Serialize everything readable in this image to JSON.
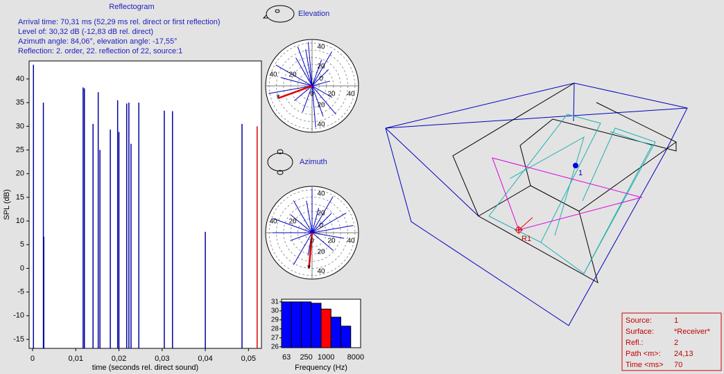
{
  "header": {
    "title": "Reflectogram",
    "info_lines": [
      "Arrival time: 70,31 ms (52,29 ms rel. direct or first reflection)",
      "Level of: 30,32 dB (-12,83 dB rel. direct)",
      "Azimuth angle: 84,06°, elevation angle: -17,55°",
      "Reflection: 2. order, 22. reflection of 22, source:1"
    ]
  },
  "chart_data": [
    {
      "type": "impulse",
      "x_label": "time (seconds rel. direct sound)",
      "y_label": "SPL (dB)",
      "x": [
        0.0002,
        0.0025,
        0.0026,
        0.0117,
        0.012,
        0.014,
        0.0152,
        0.0156,
        0.018,
        0.0197,
        0.02,
        0.0218,
        0.0223,
        0.0228,
        0.0246,
        0.0305,
        0.0324,
        0.04,
        0.0485,
        0.052
      ],
      "values": [
        43,
        35,
        6.7,
        38.2,
        38,
        30.5,
        37.2,
        25,
        29.3,
        35.5,
        28.8,
        34.8,
        35,
        26.3,
        35,
        33.3,
        33.2,
        7.7,
        30.5,
        30
      ],
      "colors": [
        "#0000a0",
        "#0000a0",
        "#0000a0",
        "#0000a0",
        "#0000a0",
        "#0000a0",
        "#0000a0",
        "#0000a0",
        "#0000a0",
        "#0000a0",
        "#0000a0",
        "#0000a0",
        "#0000a0",
        "#0000a0",
        "#0000a0",
        "#0000a0",
        "#0000a0",
        "#0000a0",
        "#0000a0",
        "#e00000"
      ],
      "xlim": [
        -0.0008,
        0.053
      ],
      "ylim": [
        -16.9,
        43.8
      ],
      "xticks": [
        0,
        {
          "value": 0.01,
          "label": "0,01"
        },
        {
          "value": 0.02,
          "label": "0,02"
        },
        {
          "value": 0.03,
          "label": "0,03"
        },
        {
          "value": 0.04,
          "label": "0,04"
        },
        {
          "value": 0.05,
          "label": "0,05"
        }
      ],
      "yticks": [
        -15,
        -10,
        -5,
        0,
        5,
        10,
        15,
        20,
        25,
        30,
        35,
        40
      ]
    },
    {
      "type": "bar",
      "x_label": "Frequency (Hz)",
      "categories": [
        "63",
        null,
        "250",
        null,
        "1000",
        null,
        null,
        "8000"
      ],
      "values": [
        31,
        31,
        31,
        30.85,
        30.2,
        29.3,
        28.3,
        null
      ],
      "colors": [
        "#0000ff",
        "#0000ff",
        "#0000ff",
        "#0000ff",
        "#ff0000",
        "#0000ff",
        "#0000ff",
        "#0000ff"
      ],
      "ylim": [
        25.9,
        31.3
      ],
      "yticks": [
        26,
        27,
        28,
        29,
        30,
        31
      ]
    }
  ],
  "elevation": {
    "title": "Elevation",
    "vertical_ticks": [
      "40",
      "20",
      "0",
      "20",
      "40"
    ],
    "horizontal_ticks": [
      "40",
      "20",
      "0",
      "20",
      "40"
    ]
  },
  "azimuth": {
    "title": "Azimuth",
    "vertical_ticks": [
      "40",
      "20",
      "0",
      "20",
      "40"
    ],
    "horizontal_ticks": [
      "40",
      "20",
      "0",
      "20",
      "40"
    ]
  },
  "room": {
    "source_label": "1",
    "receiver_label": "R1"
  },
  "info_box": {
    "rows": [
      [
        "Source:",
        "1"
      ],
      [
        "Surface:",
        "*Receiver*"
      ],
      [
        "Refl.:",
        "2"
      ],
      [
        "Path <m>:",
        "24,13"
      ],
      [
        "Time <ms>",
        "70"
      ]
    ]
  }
}
